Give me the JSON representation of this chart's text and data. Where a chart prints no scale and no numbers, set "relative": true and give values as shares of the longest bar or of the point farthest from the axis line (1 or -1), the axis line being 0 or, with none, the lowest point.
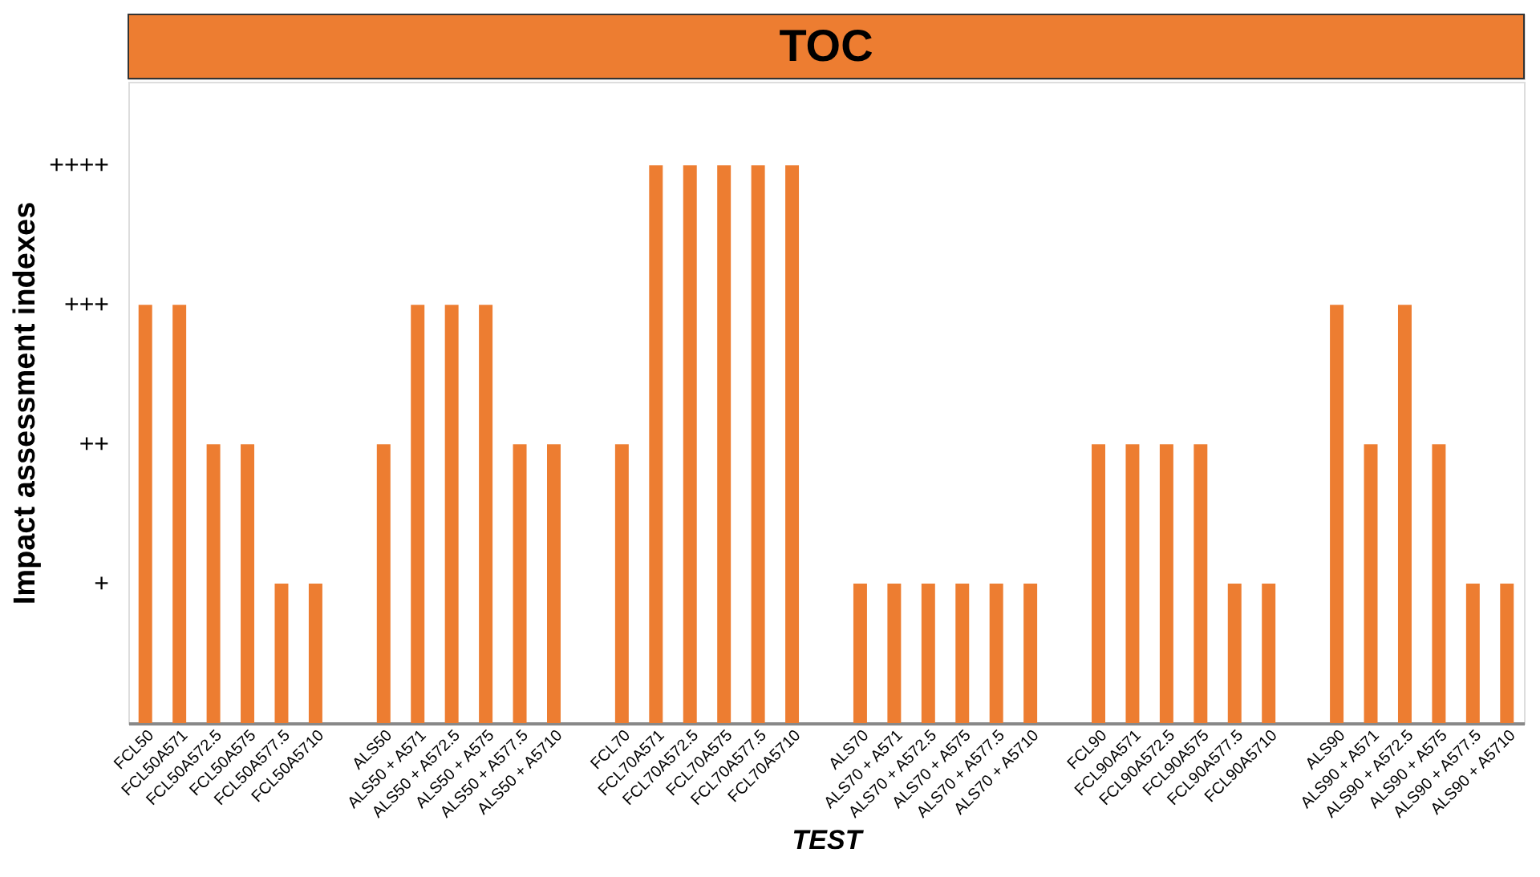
{
  "chart_data": {
    "type": "bar",
    "title": "TOC",
    "xlabel": "TEST",
    "ylabel": "Impact assessment indexes",
    "categories": [
      "FCL50",
      "FCL50A571",
      "FCL50A572.5",
      "FCL50A575",
      "FCL50A577.5",
      "FCL50A5710",
      null,
      "ALS50",
      "ALS50 + A571",
      "ALS50 + A572.5",
      "ALS50 + A575",
      "ALS50 + A577.5",
      "ALS50 + A5710",
      null,
      "FCL70",
      "FCL70A571",
      "FCL70A572.5",
      "FCL70A575",
      "FCL70A577.5",
      "FCL70A5710",
      null,
      "ALS70",
      "ALS70 + A571",
      "ALS70 + A572.5",
      "ALS70 + A575",
      "ALS70 + A577.5",
      "ALS70 + A5710",
      null,
      "FCL90",
      "FCL90A571",
      "FCL90A572.5",
      "FCL90A575",
      "FCL90A577.5",
      "FCL90A5710",
      null,
      "ALS90",
      "ALS90 + A571",
      "ALS90 + A572.5",
      "ALS90 + A575",
      "ALS90 + A577.5",
      "ALS90 + A5710"
    ],
    "values": [
      0.75,
      0.75,
      0.5,
      0.5,
      0.25,
      0.25,
      null,
      0.5,
      0.75,
      0.75,
      0.75,
      0.5,
      0.5,
      null,
      0.5,
      1,
      1,
      1,
      1,
      1,
      null,
      0.25,
      0.25,
      0.25,
      0.25,
      0.25,
      0.25,
      null,
      0.5,
      0.5,
      0.5,
      0.5,
      0.25,
      0.25,
      null,
      0.75,
      0.5,
      0.75,
      0.5,
      0.25,
      0.25
    ],
    "relative": true,
    "color": "#ed7d31",
    "annotations": [
      "+",
      "++",
      "+++",
      "++++"
    ],
    "grid": false
  }
}
